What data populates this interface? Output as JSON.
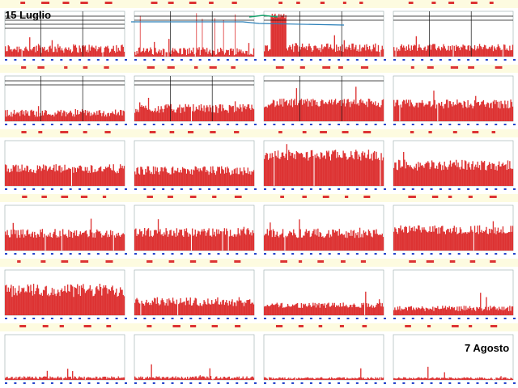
{
  "labels": {
    "start": "15 Luglio",
    "end": "7 Agosto"
  },
  "colors": {
    "header": "#fdfbe0",
    "bars": "#dd3333",
    "lines": "#111111",
    "axis": "#2244cc",
    "panel": "#ffffff",
    "blue_track": "#2a7fb8",
    "green_track": "#16a06a"
  },
  "chart_data": {
    "type": "bar",
    "layout": "grid of 24 small multiples (6 rows x 4 columns)",
    "panels": [
      {
        "level": 0.18,
        "var": 0.1,
        "lines": 4
      },
      {
        "level": 0.12,
        "var": 0.09,
        "lines": 2,
        "spikes": 1
      },
      {
        "level": 0.2,
        "var": 0.1,
        "lines": 2,
        "burst": 1
      },
      {
        "level": 0.2,
        "var": 0.08,
        "lines": 2
      },
      {
        "level": 0.18,
        "var": 0.08,
        "lines": 2
      },
      {
        "level": 0.28,
        "var": 0.1,
        "lines": 2
      },
      {
        "level": 0.4,
        "var": 0.1,
        "lines": 1
      },
      {
        "level": 0.38,
        "var": 0.1,
        "lines": 0
      },
      {
        "level": 0.38,
        "var": 0.1,
        "lines": 0
      },
      {
        "level": 0.34,
        "var": 0.1,
        "lines": 0
      },
      {
        "level": 0.68,
        "var": 0.12,
        "lines": 0
      },
      {
        "level": 0.46,
        "var": 0.12,
        "lines": 0
      },
      {
        "level": 0.38,
        "var": 0.1,
        "lines": 0
      },
      {
        "level": 0.4,
        "var": 0.1,
        "lines": 0
      },
      {
        "level": 0.38,
        "var": 0.1,
        "lines": 0
      },
      {
        "level": 0.46,
        "var": 0.1,
        "lines": 0
      },
      {
        "level": 0.55,
        "var": 0.15,
        "lines": 0
      },
      {
        "level": 0.3,
        "var": 0.1,
        "lines": 0
      },
      {
        "level": 0.22,
        "var": 0.06,
        "lines": 0
      },
      {
        "level": 0.15,
        "var": 0.06,
        "lines": 0
      },
      {
        "level": 0.05,
        "var": 0.03,
        "lines": 0
      },
      {
        "level": 0.05,
        "var": 0.03,
        "lines": 0
      },
      {
        "level": 0.04,
        "var": 0.02,
        "lines": 0
      },
      {
        "level": 0.04,
        "var": 0.02,
        "lines": 0
      }
    ]
  }
}
